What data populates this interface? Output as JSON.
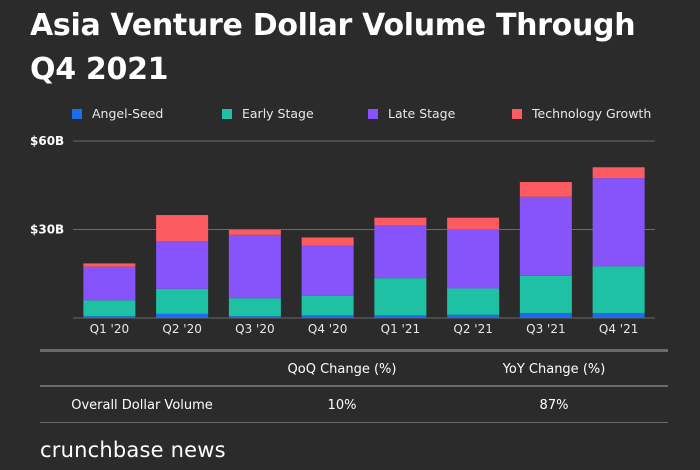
{
  "chart_data": {
    "type": "bar",
    "stacked": true,
    "title": "Asia Venture Dollar Volume Through Q4 2021",
    "categories": [
      "Q1 '20",
      "Q2 '20",
      "Q3 '20",
      "Q4 '20",
      "Q1 '21",
      "Q2 '21",
      "Q3 '21",
      "Q4 '21"
    ],
    "series": [
      {
        "name": "Angel-Seed",
        "color": "#1a6cf0",
        "values": [
          0.6,
          1.4,
          0.6,
          0.9,
          0.9,
          1.1,
          1.7,
          1.7
        ]
      },
      {
        "name": "Early Stage",
        "color": "#1fc1a4",
        "values": [
          5.4,
          8.5,
          6.1,
          6.6,
          12.6,
          8.9,
          12.6,
          15.8
        ]
      },
      {
        "name": "Late Stage",
        "color": "#8654fa",
        "values": [
          11.4,
          16.2,
          21.5,
          17.0,
          17.9,
          20.1,
          26.8,
          29.9
        ]
      },
      {
        "name": "Technology Growth",
        "color": "#fd5b62",
        "values": [
          1.1,
          8.8,
          1.7,
          2.8,
          2.6,
          3.9,
          5.0,
          3.7
        ]
      }
    ],
    "yticks": [
      {
        "value": 30,
        "label": "$30B"
      },
      {
        "value": 60,
        "label": "$60B"
      }
    ],
    "ylim": [
      0,
      60
    ],
    "unit": "billion USD",
    "grid": true,
    "legend": "top"
  },
  "table": {
    "headers": [
      "",
      "QoQ Change (%)",
      "YoY Change (%)"
    ],
    "rows": [
      [
        "Overall Dollar Volume",
        "10%",
        "87%"
      ]
    ]
  },
  "footer": "crunchbase news"
}
